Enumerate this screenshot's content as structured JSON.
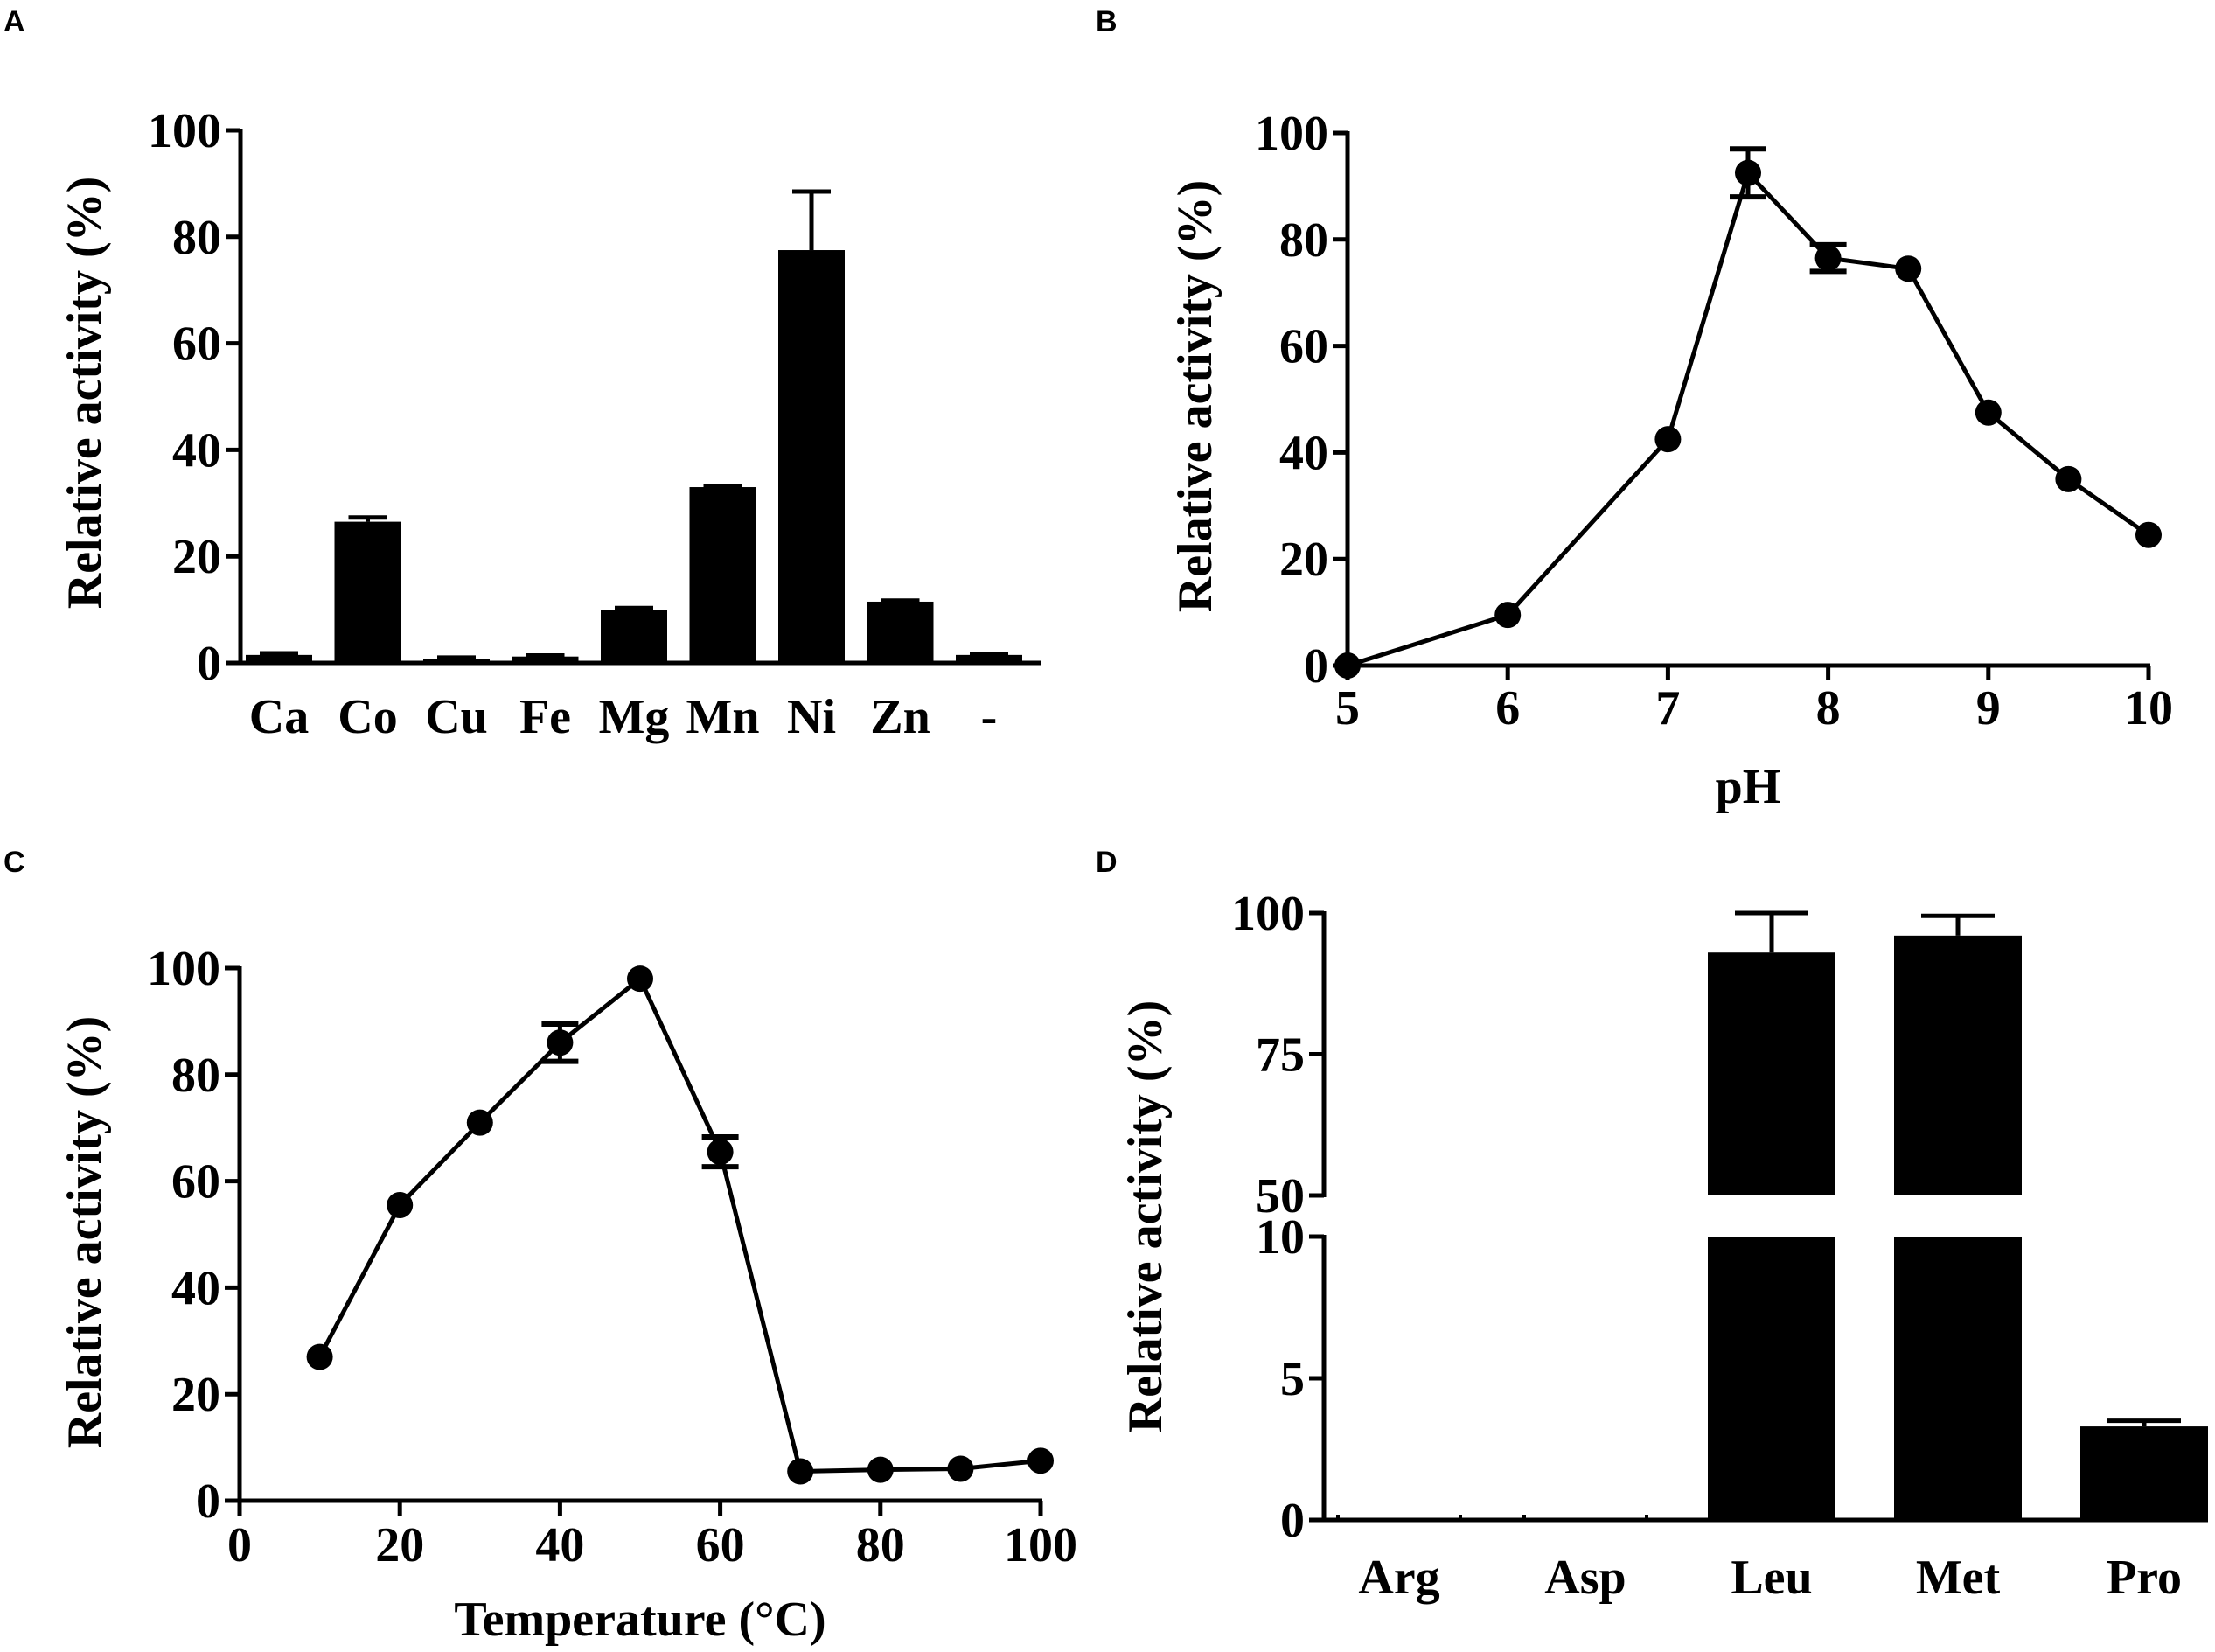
{
  "panels": {
    "a": "A",
    "b": "B",
    "c": "C",
    "d": "D"
  },
  "colors": {
    "ink": "#000000",
    "background": "#ffffff"
  },
  "chart_data": [
    {
      "id": "A",
      "type": "bar",
      "title": "",
      "xlabel": "",
      "ylabel": "Relative activity (%)",
      "ylim": [
        0,
        100
      ],
      "yticks": [
        "0",
        "20",
        "40",
        "60",
        "80",
        "100"
      ],
      "categories": [
        "Ca",
        "Co",
        "Cu",
        "Fe",
        "Mg",
        "Mn",
        "Ni",
        "Zn",
        "-"
      ],
      "values": [
        1.5,
        26.5,
        0.8,
        1.2,
        10,
        33,
        77.5,
        11.5,
        1.5
      ],
      "errors": [
        0.3,
        0.8,
        0.2,
        0.2,
        0.3,
        0.2,
        11,
        0.2,
        0.2
      ]
    },
    {
      "id": "B",
      "type": "line",
      "title": "",
      "xlabel": "pH",
      "ylabel": "Relative activity (%)",
      "xlim": [
        5,
        10
      ],
      "ylim": [
        0,
        100
      ],
      "xticks": [
        "5",
        "6",
        "7",
        "8",
        "9",
        "10"
      ],
      "yticks": [
        "0",
        "20",
        "40",
        "60",
        "80",
        "100"
      ],
      "x": [
        5,
        6,
        7,
        7.5,
        8,
        8.5,
        9,
        9.5,
        10
      ],
      "y": [
        0,
        9.5,
        42.5,
        92.5,
        76.5,
        74.5,
        47.5,
        35,
        24.5
      ],
      "errors": [
        0,
        0,
        0,
        4.5,
        2.5,
        0,
        0,
        0,
        0
      ]
    },
    {
      "id": "C",
      "type": "line",
      "title": "",
      "xlabel": "Temperature (°C)",
      "ylabel": "Relative activity (%)",
      "xlim": [
        0,
        100
      ],
      "ylim": [
        0,
        100
      ],
      "xticks": [
        "0",
        "20",
        "40",
        "60",
        "80",
        "100"
      ],
      "yticks": [
        "0",
        "20",
        "40",
        "60",
        "80",
        "100"
      ],
      "x": [
        10,
        20,
        30,
        40,
        50,
        60,
        70,
        80,
        90,
        100
      ],
      "y": [
        27,
        55.5,
        71,
        86,
        98,
        65.5,
        5.5,
        5.8,
        6,
        7.5
      ],
      "errors": [
        0,
        0,
        0,
        3.5,
        0,
        2.8,
        0,
        0,
        0,
        0
      ]
    },
    {
      "id": "D",
      "type": "bar",
      "title": "",
      "xlabel": "",
      "ylabel": "Relative activity (%)",
      "axis_break": {
        "lower_range": [
          0,
          10
        ],
        "upper_range": [
          50,
          100
        ]
      },
      "yticks_lower": [
        "0",
        "5",
        "10"
      ],
      "yticks_upper": [
        "50",
        "75",
        "100"
      ],
      "categories": [
        "Arg",
        "Asp",
        "Leu",
        "Met",
        "Pro"
      ],
      "values": [
        0,
        0,
        93,
        96,
        3.3
      ],
      "errors": [
        0,
        0,
        7,
        3.5,
        0.2
      ]
    }
  ]
}
